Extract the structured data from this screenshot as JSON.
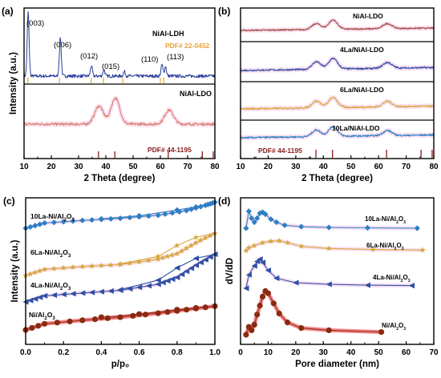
{
  "figure": {
    "colors": {
      "xrd_ldh": "#2b3f9a",
      "xrd_ldo": "#d9826a",
      "xrd_ldo_dark": "#a34b3c",
      "pdf_ldh": "#e8a33a",
      "pdf_ldo": "#8b1a1a",
      "trace_la10": "#2d7fc4",
      "trace_la6": "#d8a73a",
      "trace_la4": "#2f4fa5",
      "trace_ni": "#9c2a1c",
      "trace_ni_marker": "#8b2a12",
      "glow": "#f4c6e6",
      "ni_glow": "#e92b2b"
    }
  },
  "chart_data": [
    {
      "panel": "a",
      "panel_label": "(a)",
      "type": "line",
      "xlabel": "2 Theta (degree)",
      "ylabel": "Intensity (a.u.)",
      "xlim": [
        10,
        80
      ],
      "xticks": [
        "10",
        "20",
        "30",
        "40",
        "50",
        "60",
        "70",
        "80"
      ],
      "grid": false,
      "legend": "none",
      "series": [
        {
          "name": "NiAl-LDH",
          "peaks": [
            {
              "x": 11.5,
              "h": 1.0
            },
            {
              "x": 23.3,
              "h": 0.6
            },
            {
              "x": 34.7,
              "h": 0.16
            },
            {
              "x": 39.3,
              "h": 0.1
            },
            {
              "x": 46.8,
              "h": 0.07
            },
            {
              "x": 60.6,
              "h": 0.18
            },
            {
              "x": 61.9,
              "h": 0.15
            }
          ]
        },
        {
          "name": "NiAl-LDO",
          "peaks": [
            {
              "x": 37.5,
              "h": 0.45
            },
            {
              "x": 43.5,
              "h": 0.65
            },
            {
              "x": 63.2,
              "h": 0.35
            }
          ]
        }
      ],
      "annotations": [
        "(003)",
        "(006)",
        "(012)",
        "(015)",
        "(110)",
        "(113)",
        "PDF# 22-0452",
        "PDF# 44-1195"
      ],
      "reference_lines": {
        "pdf_22_0452": [
          11.4,
          23.0,
          34.6,
          39.1,
          46.2,
          60.0,
          61.3
        ],
        "pdf_44_1195": [
          37.3,
          43.3,
          62.9,
          75.4,
          79.4
        ]
      }
    },
    {
      "panel": "b",
      "panel_label": "(b)",
      "type": "line",
      "xlabel": "2 Theta (degree)",
      "ylabel": "",
      "xlim": [
        10,
        80
      ],
      "xticks": [
        "10",
        "20",
        "30",
        "40",
        "50",
        "60",
        "70",
        "80"
      ],
      "grid": false,
      "legend": "none",
      "series": [
        {
          "name": "NiAl-LDO",
          "peaks": [
            {
              "x": 37.5,
              "h": 0.35
            },
            {
              "x": 43.5,
              "h": 0.55
            },
            {
              "x": 63.2,
              "h": 0.3
            }
          ]
        },
        {
          "name": "4La/NiAl-LDO",
          "peaks": [
            {
              "x": 37.5,
              "h": 0.35
            },
            {
              "x": 43.5,
              "h": 0.5
            },
            {
              "x": 63.2,
              "h": 0.27
            }
          ]
        },
        {
          "name": "6La/NiAl-LDO",
          "peaks": [
            {
              "x": 37.5,
              "h": 0.33
            },
            {
              "x": 43.5,
              "h": 0.5
            },
            {
              "x": 63.2,
              "h": 0.27
            }
          ]
        },
        {
          "name": "10La/NiAl-LDO",
          "peaks": [
            {
              "x": 37.5,
              "h": 0.33
            },
            {
              "x": 43.5,
              "h": 0.48
            },
            {
              "x": 63.2,
              "h": 0.25
            }
          ]
        }
      ],
      "annotations": [
        "PDF# 44-1195"
      ],
      "reference_lines": {
        "pdf_44_1195": [
          37.3,
          43.3,
          62.9,
          75.4,
          79.4
        ]
      }
    },
    {
      "panel": "c",
      "panel_label": "(c)",
      "type": "line",
      "xlabel": "p/p₀",
      "ylabel": "Intensity (a.u.)",
      "xlim": [
        0.0,
        1.0
      ],
      "xticks": [
        "0.0",
        "0.2",
        "0.4",
        "0.6",
        "0.8",
        "1.0"
      ],
      "grid": false,
      "legend": "none",
      "series": [
        {
          "name": "10La-Ni/Al₂O₃",
          "adsorption": [
            [
              0.0,
              0.0
            ],
            [
              0.1,
              0.5
            ],
            [
              0.3,
              0.75
            ],
            [
              0.5,
              0.95
            ],
            [
              0.7,
              1.25
            ],
            [
              0.85,
              1.7
            ],
            [
              0.95,
              2.2
            ],
            [
              1.0,
              2.5
            ]
          ],
          "desorption": [
            [
              1.0,
              2.5
            ],
            [
              0.9,
              2.05
            ],
            [
              0.8,
              1.75
            ],
            [
              0.6,
              1.2
            ],
            [
              0.4,
              0.9
            ]
          ]
        },
        {
          "name": "6La-Ni/Al₂O₃",
          "adsorption": [
            [
              0.0,
              0.0
            ],
            [
              0.1,
              0.45
            ],
            [
              0.3,
              0.65
            ],
            [
              0.5,
              0.8
            ],
            [
              0.7,
              1.2
            ],
            [
              0.8,
              1.6
            ],
            [
              0.9,
              2.4
            ],
            [
              1.0,
              3.1
            ]
          ],
          "desorption": [
            [
              1.0,
              3.1
            ],
            [
              0.9,
              2.8
            ],
            [
              0.8,
              2.2
            ],
            [
              0.7,
              1.4
            ],
            [
              0.5,
              0.85
            ]
          ]
        },
        {
          "name": "4La-Ni/Al₂O₃",
          "adsorption": [
            [
              0.0,
              0.0
            ],
            [
              0.1,
              0.45
            ],
            [
              0.3,
              0.65
            ],
            [
              0.5,
              0.85
            ],
            [
              0.7,
              1.3
            ],
            [
              0.8,
              1.8
            ],
            [
              0.9,
              2.7
            ],
            [
              1.0,
              3.5
            ]
          ],
          "desorption": [
            [
              1.0,
              3.5
            ],
            [
              0.9,
              3.2
            ],
            [
              0.8,
              2.5
            ],
            [
              0.7,
              1.6
            ],
            [
              0.5,
              0.9
            ]
          ]
        },
        {
          "name": "Ni/Al₂O₃",
          "adsorption": [
            [
              0.0,
              0.0
            ],
            [
              0.1,
              0.7
            ],
            [
              0.3,
              1.1
            ],
            [
              0.5,
              1.45
            ],
            [
              0.7,
              1.9
            ],
            [
              0.85,
              2.3
            ],
            [
              1.0,
              2.7
            ]
          ],
          "desorption": [
            [
              1.0,
              2.7
            ],
            [
              0.9,
              2.5
            ],
            [
              0.8,
              2.3
            ],
            [
              0.6,
              1.8
            ],
            [
              0.4,
              1.45
            ]
          ]
        }
      ]
    },
    {
      "panel": "d",
      "panel_label": "(d)",
      "type": "line",
      "xlabel": "Pore diameter (nm)",
      "ylabel": "dV/dD",
      "xlim": [
        0,
        70
      ],
      "xticks": [
        "0",
        "10",
        "20",
        "30",
        "40",
        "50",
        "60",
        "70"
      ],
      "grid": false,
      "legend": "none",
      "series": [
        {
          "name": "10La-Ni/Al₂O₃",
          "points": [
            [
              2,
              0.0
            ],
            [
              3,
              0.85
            ],
            [
              4,
              0.5
            ],
            [
              5,
              0.3
            ],
            [
              6,
              0.5
            ],
            [
              7,
              0.75
            ],
            [
              8,
              0.8
            ],
            [
              9,
              0.7
            ],
            [
              11,
              0.45
            ],
            [
              13,
              0.3
            ],
            [
              16,
              0.15
            ],
            [
              22,
              0.08
            ],
            [
              32,
              0.04
            ],
            [
              46,
              0.02
            ],
            [
              64,
              0.0
            ]
          ]
        },
        {
          "name": "6La-Ni/Al₂O₃",
          "points": [
            [
              2,
              0.0
            ],
            [
              3,
              0.2
            ],
            [
              5,
              0.35
            ],
            [
              8,
              0.55
            ],
            [
              11,
              0.65
            ],
            [
              14,
              0.68
            ],
            [
              17,
              0.55
            ],
            [
              22,
              0.3
            ],
            [
              32,
              0.15
            ],
            [
              48,
              0.08
            ],
            [
              66,
              0.04
            ]
          ]
        },
        {
          "name": "4La-Ni/Al₂O₃",
          "points": [
            [
              2,
              0.0
            ],
            [
              3,
              0.6
            ],
            [
              5,
              1.0
            ],
            [
              6,
              1.2
            ],
            [
              7,
              1.3
            ],
            [
              8,
              1.15
            ],
            [
              10,
              0.8
            ],
            [
              13,
              0.45
            ],
            [
              20,
              0.25
            ],
            [
              32,
              0.18
            ],
            [
              46,
              0.14
            ],
            [
              62,
              0.12
            ]
          ]
        },
        {
          "name": "Ni/Al₂O₃",
          "points": [
            [
              2,
              0.0
            ],
            [
              3,
              0.35
            ],
            [
              4,
              0.2
            ],
            [
              5,
              0.45
            ],
            [
              6,
              0.9
            ],
            [
              7,
              1.3
            ],
            [
              8,
              1.7
            ],
            [
              9,
              1.95
            ],
            [
              10,
              1.85
            ],
            [
              12,
              1.4
            ],
            [
              14,
              0.95
            ],
            [
              17,
              0.55
            ],
            [
              22,
              0.3
            ],
            [
              32,
              0.2
            ],
            [
              51,
              0.12
            ]
          ]
        }
      ]
    }
  ]
}
